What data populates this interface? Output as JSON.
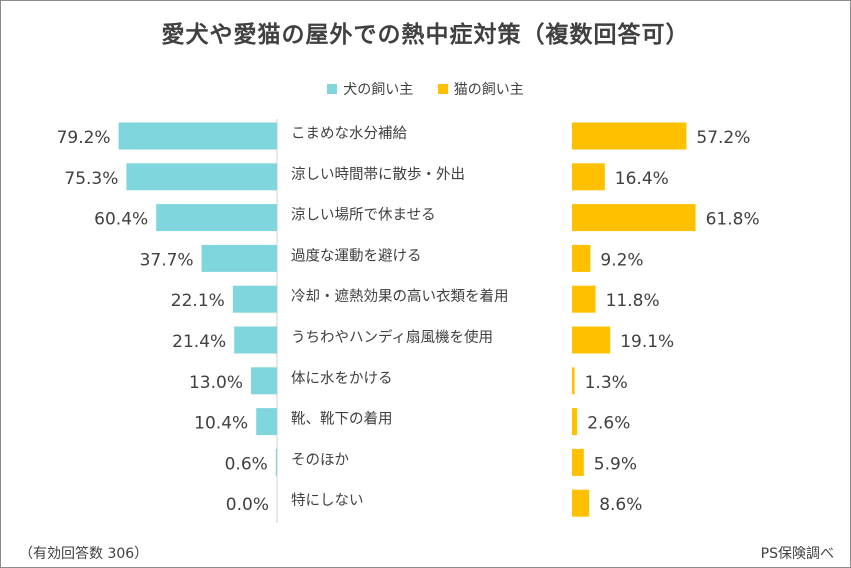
{
  "title": "愛犬や愛猫の屋外での熱中症対策（複数回答可）",
  "legend": {
    "dog": "犬の飼い主",
    "cat": "猫の飼い主"
  },
  "footer": {
    "note": "（有効回答数 306）",
    "source": "PS保険調べ"
  },
  "colors": {
    "dog": "#7fd6dc",
    "cat": "#ffc000",
    "text": "#404040"
  },
  "chart_data": {
    "type": "bar",
    "title": "愛犬や愛猫の屋外での熱中症対策（複数回答可）",
    "categories": [
      "こまめな水分補給",
      "涼しい時間帯に散歩・外出",
      "涼しい場所で休ませる",
      "過度な運動を避ける",
      "冷却・遮熱効果の高い衣類を着用",
      "うちわやハンディ扇風機を使用",
      "体に水をかける",
      "靴、靴下の着用",
      "そのほか",
      "特にしない"
    ],
    "series": [
      {
        "name": "犬の飼い主",
        "values": [
          79.2,
          75.3,
          60.4,
          37.7,
          22.1,
          21.4,
          13.0,
          10.4,
          0.6,
          0.0
        ],
        "labels": [
          "79.2%",
          "75.3%",
          "60.4%",
          "37.7%",
          "22.1%",
          "21.4%",
          "13.0%",
          "10.4%",
          "0.6%",
          "0.0%"
        ]
      },
      {
        "name": "猫の飼い主",
        "values": [
          57.2,
          16.4,
          61.8,
          9.2,
          11.8,
          19.1,
          1.3,
          2.6,
          5.9,
          8.6
        ],
        "labels": [
          "57.2%",
          "16.4%",
          "61.8%",
          "9.2%",
          "11.8%",
          "19.1%",
          "1.3%",
          "2.6%",
          "5.9%",
          "8.6%"
        ]
      }
    ],
    "grid": false,
    "legend_position": "top"
  }
}
